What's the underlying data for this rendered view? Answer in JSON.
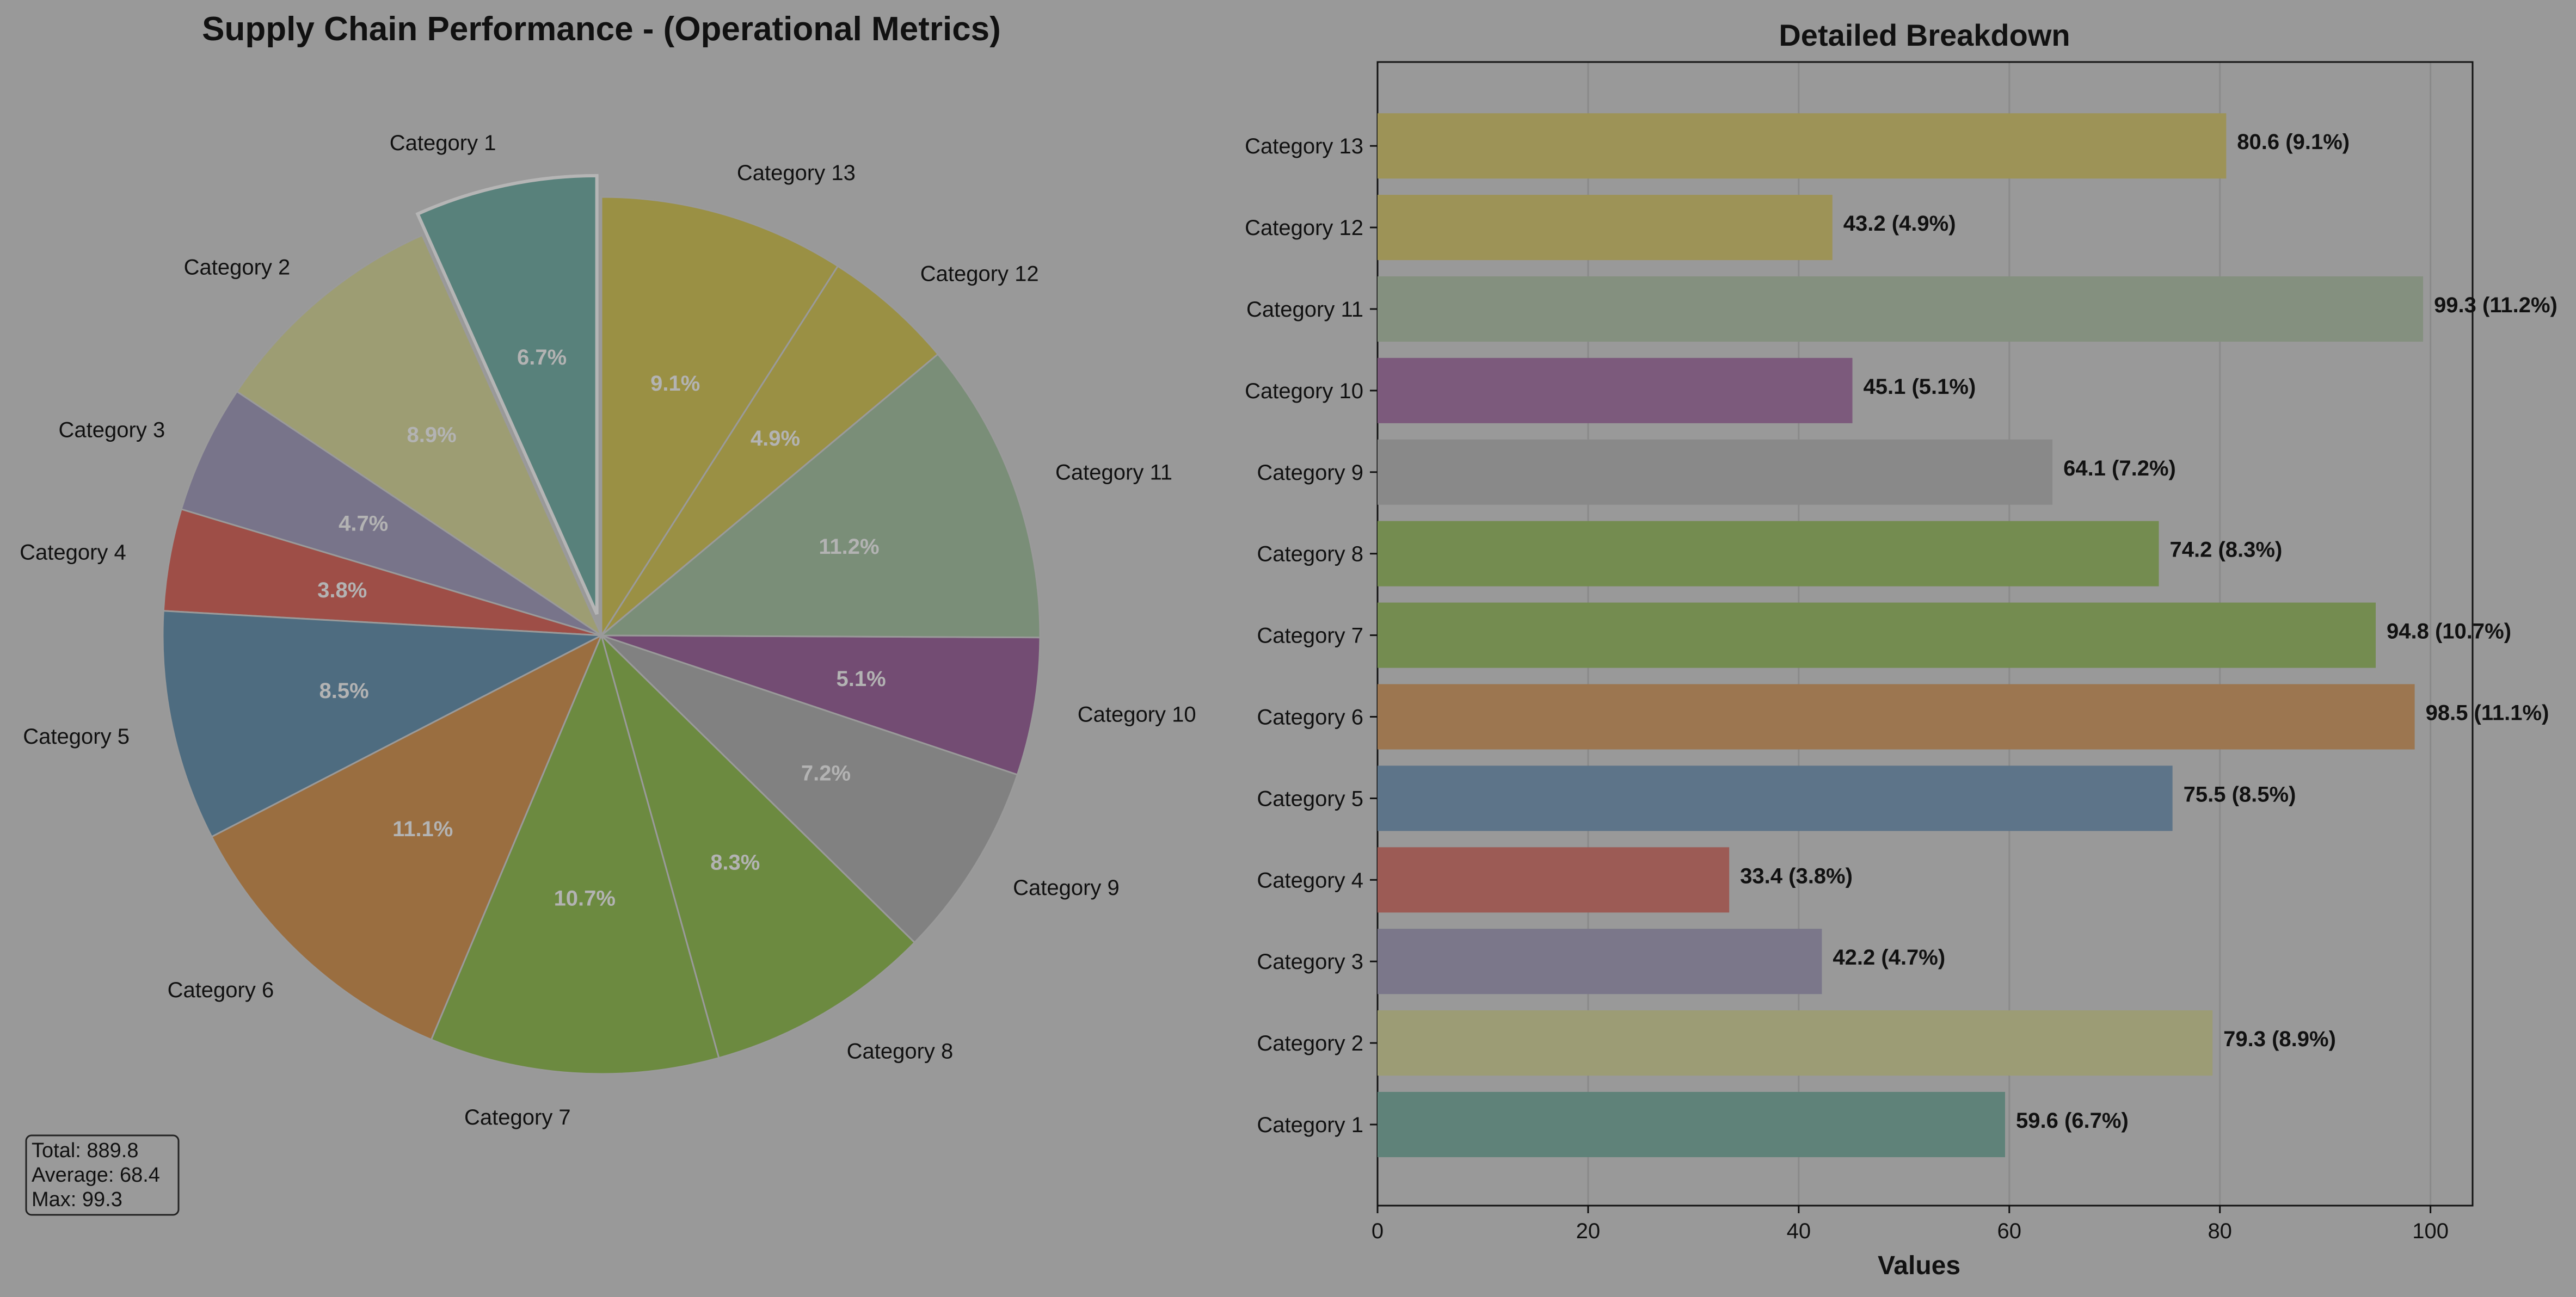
{
  "chart_data": [
    {
      "type": "pie",
      "title": "Supply Chain Performance - (Operational Metrics)",
      "categories": [
        "Category 1",
        "Category 2",
        "Category 3",
        "Category 4",
        "Category 5",
        "Category 6",
        "Category 7",
        "Category 8",
        "Category 9",
        "Category 10",
        "Category 11",
        "Category 12",
        "Category 13"
      ],
      "values": [
        59.6,
        79.3,
        42.2,
        33.4,
        75.5,
        98.5,
        94.8,
        74.2,
        64.1,
        45.1,
        99.3,
        43.2,
        80.6
      ],
      "percent_labels": [
        "6.7%",
        "8.9%",
        "4.7%",
        "3.8%",
        "8.5%",
        "11.1%",
        "10.7%",
        "8.3%",
        "7.2%",
        "5.1%",
        "11.2%",
        "4.9%",
        "9.1%"
      ],
      "colors": [
        "#58817b",
        "#9d9d73",
        "#78748a",
        "#9e4e47",
        "#4e6c80",
        "#9a6e40",
        "#6c8a40",
        "#6c8a40",
        "#818181",
        "#734c73",
        "#7a8e78",
        "#9a9044",
        "#9a9044"
      ],
      "start_angle_deg": 90,
      "direction": "counterclockwise",
      "exploded": [
        "Category 1"
      ],
      "stats_box": [
        "Total: 889.8",
        "Average: 68.4",
        "Max: 99.3"
      ]
    },
    {
      "type": "bar",
      "orientation": "horizontal",
      "title": "Detailed Breakdown",
      "categories": [
        "Category 1",
        "Category 2",
        "Category 3",
        "Category 4",
        "Category 5",
        "Category 6",
        "Category 7",
        "Category 8",
        "Category 9",
        "Category 10",
        "Category 11",
        "Category 12",
        "Category 13"
      ],
      "values": [
        59.6,
        79.3,
        42.2,
        33.4,
        75.5,
        98.5,
        94.8,
        74.2,
        64.1,
        45.1,
        99.3,
        43.2,
        80.6
      ],
      "value_labels": [
        "59.6 (6.7%)",
        "79.3 (8.9%)",
        "42.2 (4.7%)",
        "33.4 (3.8%)",
        "75.5 (8.5%)",
        "98.5 (11.1%)",
        "94.8 (10.7%)",
        "74.2 (8.3%)",
        "64.1 (7.2%)",
        "45.1 (5.1%)",
        "99.3 (11.2%)",
        "43.2 (4.9%)",
        "80.6 (9.1%)"
      ],
      "colors": [
        "#5f8279",
        "#9c9c75",
        "#7b778a",
        "#9c5b55",
        "#5d7489",
        "#9c7650",
        "#748c50",
        "#748c50",
        "#898989",
        "#7c5a7c",
        "#84907f",
        "#9d9357",
        "#9d9357"
      ],
      "xlabel": "Values",
      "ylabel": "",
      "xlim": [
        0,
        104
      ],
      "xticks": [
        0,
        20,
        40,
        60,
        80,
        100
      ],
      "grid": "x"
    }
  ]
}
